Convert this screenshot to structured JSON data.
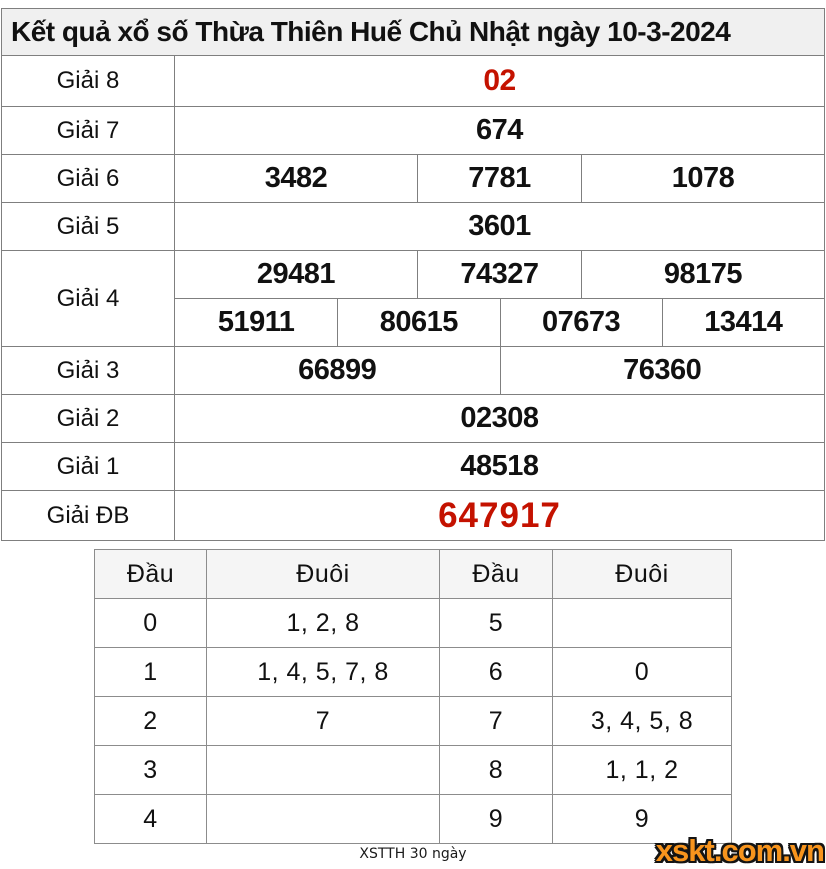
{
  "page": {
    "title": "Kết quả xổ số Thừa Thiên Huế Chủ Nhật ngày 10-3-2024"
  },
  "colors": {
    "highlight_red": "#c41200",
    "logo_orange": "#f7941d",
    "border_gray": "#7f7f7f",
    "title_bg": "#f0f0f0",
    "header_bg": "#f5f5f5"
  },
  "results": {
    "labels": {
      "g8": "Giải 8",
      "g7": "Giải 7",
      "g6": "Giải 6",
      "g5": "Giải 5",
      "g4": "Giải 4",
      "g3": "Giải 3",
      "g2": "Giải 2",
      "g1": "Giải 1",
      "db": "Giải ĐB"
    },
    "g8": [
      "02"
    ],
    "g7": [
      "674"
    ],
    "g6": [
      "3482",
      "7781",
      "1078"
    ],
    "g5": [
      "3601"
    ],
    "g4_line1": [
      "29481",
      "74327",
      "98175"
    ],
    "g4_line2": [
      "51911",
      "80615",
      "07673",
      "13414"
    ],
    "g3": [
      "66899",
      "76360"
    ],
    "g2": [
      "02308"
    ],
    "g1": [
      "48518"
    ],
    "db": [
      "647917"
    ]
  },
  "head_tail": {
    "headers": [
      "Đầu",
      "Đuôi",
      "Đầu",
      "Đuôi"
    ],
    "rows": [
      [
        "0",
        "1, 2, 8",
        "5",
        ""
      ],
      [
        "1",
        "1, 4, 5, 7, 8",
        "6",
        "0"
      ],
      [
        "2",
        "7",
        "7",
        "3, 4, 5, 8"
      ],
      [
        "3",
        "",
        "8",
        "1, 1, 2"
      ],
      [
        "4",
        "",
        "9",
        "9"
      ]
    ]
  },
  "footer": {
    "caption": "XSTTH 30 ngày",
    "logo": "xskt.com.vn"
  }
}
